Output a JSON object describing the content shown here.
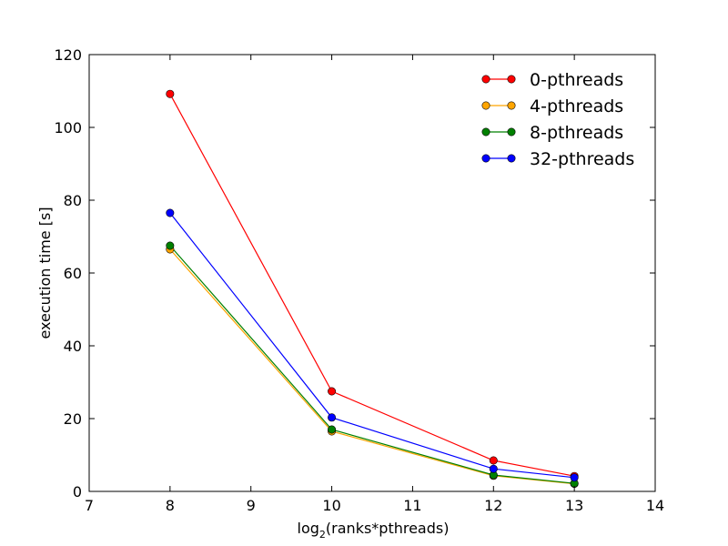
{
  "chart_data": {
    "type": "line",
    "xlabel_main": "log",
    "xlabel_sub": "2",
    "xlabel_rest": "(ranks*pthreads)",
    "ylabel": "execution time [s]",
    "xlim": [
      7,
      14
    ],
    "ylim": [
      0,
      120
    ],
    "xticks": [
      7,
      8,
      9,
      10,
      11,
      12,
      13,
      14
    ],
    "yticks": [
      0,
      20,
      40,
      60,
      80,
      100,
      120
    ],
    "legend_position": "top-right",
    "grid": false,
    "x": [
      8,
      10,
      12,
      13
    ],
    "series": [
      {
        "name": "0-pthreads",
        "color": "#ff0000",
        "values": [
          109.2,
          27.5,
          8.5,
          4.2
        ]
      },
      {
        "name": "4-pthreads",
        "color": "#ffa500",
        "values": [
          66.5,
          16.5,
          4.3,
          2.1
        ]
      },
      {
        "name": "8-pthreads",
        "color": "#008000",
        "values": [
          67.5,
          17.0,
          4.5,
          2.2
        ]
      },
      {
        "name": "32-pthreads",
        "color": "#0000ff",
        "values": [
          76.5,
          20.3,
          6.2,
          3.8
        ]
      }
    ]
  }
}
